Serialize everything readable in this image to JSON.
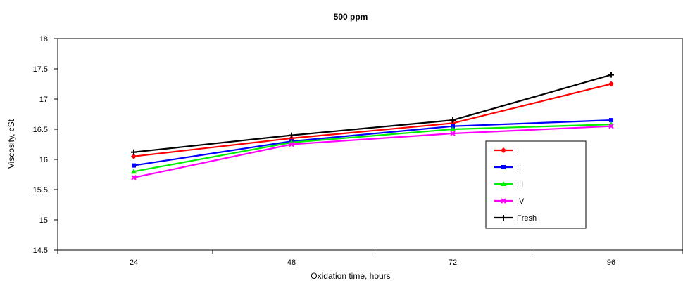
{
  "chart_data": {
    "type": "line",
    "title": "500 ppm",
    "xlabel": "Oxidation time, hours",
    "ylabel": "Viscosity, cSt",
    "categories": [
      "24",
      "48",
      "72",
      "96"
    ],
    "ylim": [
      14.5,
      18
    ],
    "yticks": [
      "18",
      "17.5",
      "17",
      "16.5",
      "16",
      "15.5",
      "15",
      "14.5"
    ],
    "grid": false,
    "legend_position": "right",
    "series": [
      {
        "name": "I",
        "color": "#ff0000",
        "marker": "diamond",
        "values": [
          16.05,
          16.35,
          16.6,
          17.25
        ]
      },
      {
        "name": "II",
        "color": "#0000ff",
        "marker": "square",
        "values": [
          15.9,
          16.3,
          16.55,
          16.65
        ]
      },
      {
        "name": "III",
        "color": "#00ee00",
        "marker": "triangle",
        "values": [
          15.8,
          16.28,
          16.5,
          16.58
        ]
      },
      {
        "name": "IV",
        "color": "#ff00ff",
        "marker": "x",
        "values": [
          15.7,
          16.25,
          16.43,
          16.55
        ]
      },
      {
        "name": "Fresh",
        "color": "#000000",
        "marker": "star",
        "values": [
          16.12,
          16.4,
          16.65,
          17.4
        ]
      }
    ]
  }
}
